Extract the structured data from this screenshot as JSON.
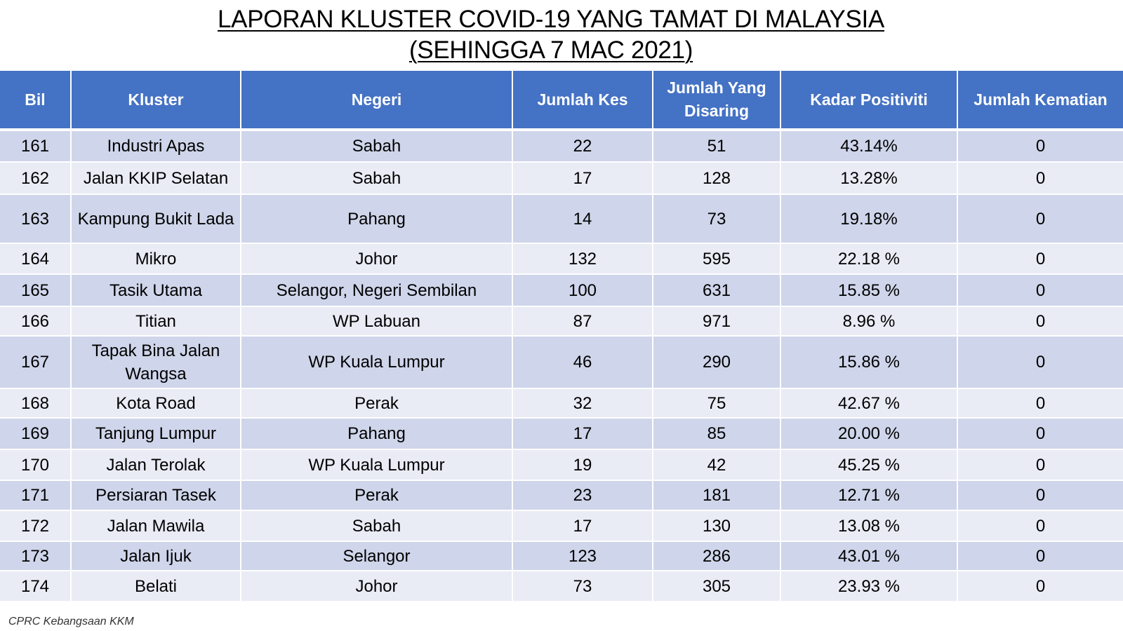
{
  "title": {
    "line1": "LAPORAN KLUSTER COVID-19 YANG TAMAT DI MALAYSIA",
    "line2": "(SEHINGGA  7 MAC 2021)"
  },
  "table": {
    "headers": [
      "Bil",
      "Kluster",
      "Negeri",
      "Jumlah Kes",
      "Jumlah Yang Disaring",
      "Kadar Positiviti",
      "Jumlah Kematian"
    ],
    "rows": [
      [
        "161",
        "Industri Apas",
        "Sabah",
        "22",
        "51",
        "43.14%",
        "0"
      ],
      [
        "162",
        "Jalan KKIP Selatan",
        "Sabah",
        "17",
        "128",
        "13.28%",
        "0"
      ],
      [
        "163",
        "Kampung Bukit Lada",
        "Pahang",
        "14",
        "73",
        "19.18%",
        "0"
      ],
      [
        "164",
        "Mikro",
        "Johor",
        "132",
        "595",
        "22.18 %",
        "0"
      ],
      [
        "165",
        "Tasik Utama",
        "Selangor, Negeri Sembilan",
        "100",
        "631",
        "15.85 %",
        "0"
      ],
      [
        "166",
        "Titian",
        "WP Labuan",
        "87",
        "971",
        "8.96 %",
        "0"
      ],
      [
        "167",
        "Tapak Bina Jalan Wangsa",
        "WP Kuala Lumpur",
        "46",
        "290",
        "15.86 %",
        "0"
      ],
      [
        "168",
        "Kota Road",
        "Perak",
        "32",
        "75",
        "42.67 %",
        "0"
      ],
      [
        "169",
        "Tanjung Lumpur",
        "Pahang",
        "17",
        "85",
        "20.00 %",
        "0"
      ],
      [
        "170",
        "Jalan Terolak",
        "WP Kuala Lumpur",
        "19",
        "42",
        "45.25 %",
        "0"
      ],
      [
        "171",
        "Persiaran Tasek",
        "Perak",
        "23",
        "181",
        "12.71 %",
        "0"
      ],
      [
        "172",
        "Jalan Mawila",
        "Sabah",
        "17",
        "130",
        "13.08 %",
        "0"
      ],
      [
        "173",
        "Jalan Ijuk",
        "Selangor",
        "123",
        "286",
        "43.01 %",
        "0"
      ],
      [
        "174",
        "Belati",
        "Johor",
        "73",
        "305",
        "23.93 %",
        "0"
      ]
    ]
  },
  "footnote": "CPRC Kebangsaan KKM"
}
